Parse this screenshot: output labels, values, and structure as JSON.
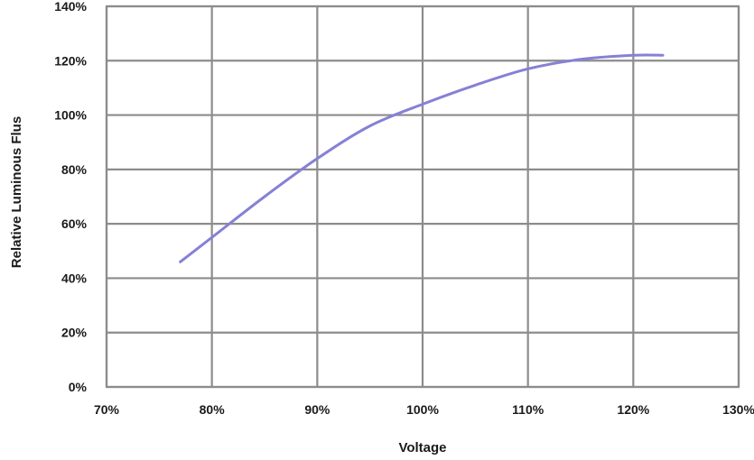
{
  "chart_data": {
    "type": "line",
    "title": "",
    "xlabel": "Voltage",
    "ylabel": "Relative Luminous Flus",
    "xlim": [
      70,
      130
    ],
    "ylim": [
      0,
      140
    ],
    "xticks": [
      70,
      80,
      90,
      100,
      110,
      120,
      130
    ],
    "yticks": [
      0,
      20,
      40,
      60,
      80,
      100,
      120,
      140
    ],
    "xtick_labels": [
      "70%",
      "80%",
      "90%",
      "100%",
      "110%",
      "120%",
      "130%"
    ],
    "ytick_labels": [
      "0%",
      "20%",
      "40%",
      "60%",
      "80%",
      "100%",
      "120%",
      "140%"
    ],
    "grid": true,
    "legend": "none",
    "series": [
      {
        "color": "#8581d6",
        "points": [
          [
            77,
            46
          ],
          [
            80,
            55
          ],
          [
            85,
            70
          ],
          [
            90,
            84
          ],
          [
            95,
            96
          ],
          [
            100,
            104
          ],
          [
            105,
            111
          ],
          [
            110,
            117
          ],
          [
            115,
            120.5
          ],
          [
            120,
            122
          ],
          [
            122.8,
            122
          ]
        ]
      }
    ]
  }
}
